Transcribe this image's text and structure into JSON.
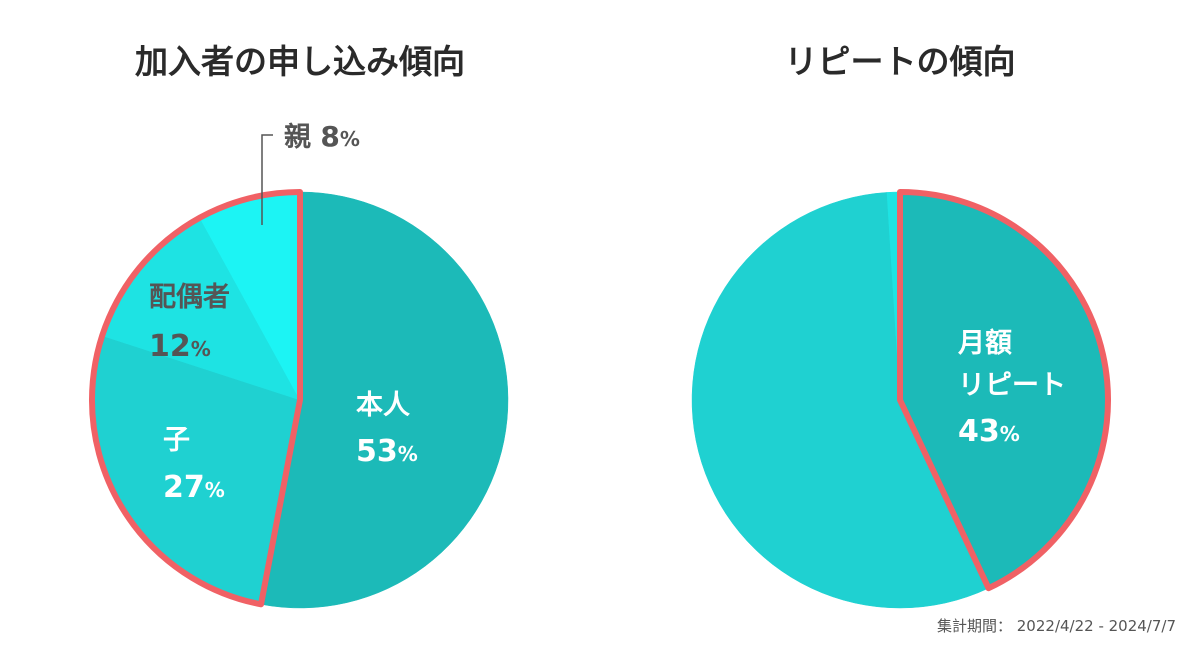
{
  "chart_data": [
    {
      "type": "pie",
      "title": "加入者の申し込み傾向",
      "slices": [
        {
          "label": "本人",
          "value": 53,
          "color": "#1cbab8"
        },
        {
          "label": "子",
          "value": 27,
          "color": "#1fd1d1"
        },
        {
          "label": "配偶者",
          "value": 12,
          "color": "#1ee3e3"
        },
        {
          "label": "親",
          "value": 8,
          "color": "#1cf4f4"
        }
      ],
      "highlight": {
        "labels": [
          "子",
          "配偶者",
          "親"
        ],
        "color": "#f06165"
      }
    },
    {
      "type": "pie",
      "title": "リピートの傾向",
      "slices": [
        {
          "label": "月額リピート",
          "display_label": [
            "月額",
            "リピート"
          ],
          "value": 43,
          "color": "#1cbab8"
        },
        {
          "label": "",
          "value": 56,
          "color": "#1fd1d1"
        },
        {
          "label": "",
          "value": 1,
          "color": "#1ee3e3"
        }
      ],
      "highlight": {
        "labels": [
          "月額リピート"
        ],
        "color": "#f06165"
      }
    }
  ],
  "footer": {
    "label": "集計期間：",
    "period": "2022/4/22 - 2024/7/7"
  }
}
